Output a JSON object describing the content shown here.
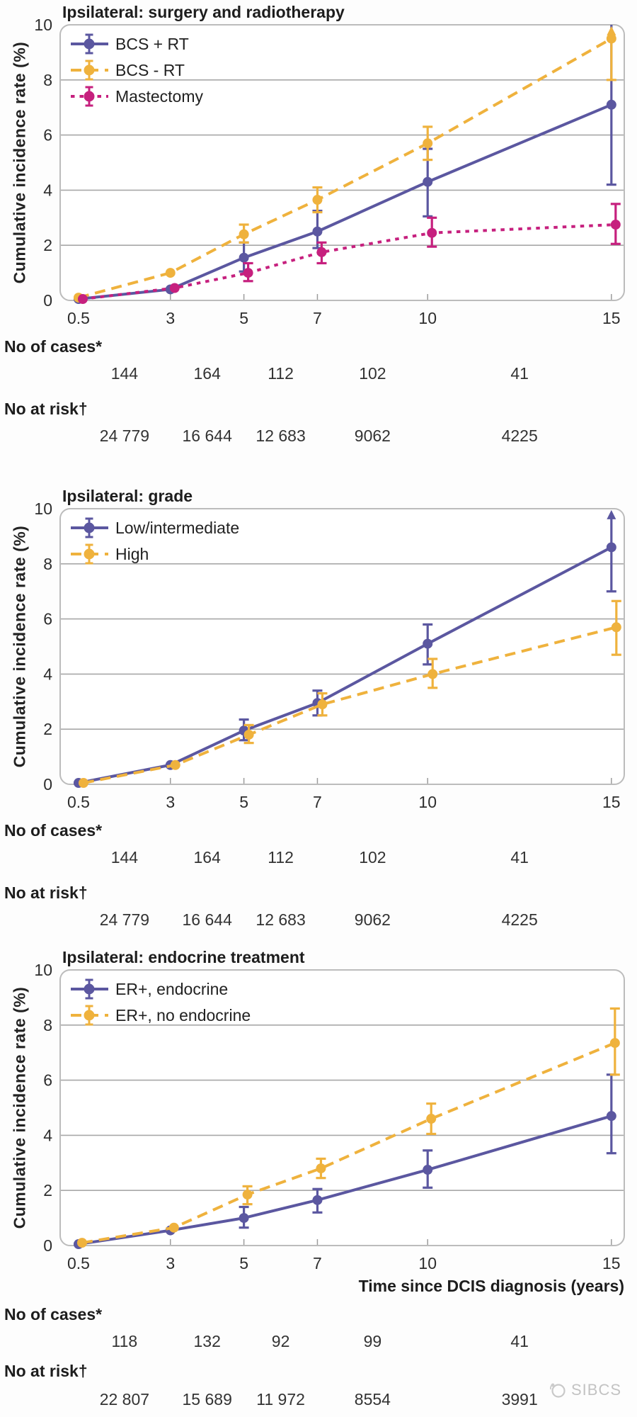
{
  "y_axis_label": "Cumulative incidence rate (%)",
  "x_axis_label": "Time since DCIS diagnosis (years)",
  "row_labels": {
    "cases": "No of cases*",
    "risk": "No at risk†"
  },
  "watermark": "SIBCS",
  "colors": {
    "purple": "#5b57a0",
    "yellow": "#efb23d",
    "magenta": "#c6207e",
    "grid": "#a8a8a8",
    "border": "#bcbcbc",
    "text": "#2e2e2e"
  },
  "chart_data": [
    {
      "type": "line",
      "title": "Ipsilateral: surgery and radiotherapy",
      "x": [
        0.5,
        3,
        5,
        7,
        10,
        15
      ],
      "x_tick_labels": [
        "0.5",
        "3",
        "5",
        "7",
        "10",
        "15"
      ],
      "x_domain": [
        0,
        15.35
      ],
      "ylim": [
        0,
        10
      ],
      "y_ticks": [
        0,
        2,
        4,
        6,
        8,
        10
      ],
      "grid": true,
      "legend_position": "top-left",
      "series": [
        {
          "name": "BCS + RT",
          "color": "#5b57a0",
          "style": "solid",
          "values": [
            0.05,
            0.4,
            1.55,
            2.5,
            4.3,
            7.1
          ],
          "ci_low": [
            null,
            null,
            1.05,
            1.9,
            3.05,
            4.2
          ],
          "ci_high": [
            null,
            null,
            2.1,
            3.25,
            5.5,
            10
          ],
          "ci_top": [
            null,
            null,
            null,
            null,
            null,
            "clip"
          ]
        },
        {
          "name": "BCS - RT",
          "color": "#efb23d",
          "style": "dashed",
          "values": [
            0.1,
            1.0,
            2.4,
            3.65,
            5.7,
            9.5
          ],
          "ci_low": [
            null,
            null,
            2.1,
            3.2,
            5.1,
            8.0
          ],
          "ci_high": [
            null,
            null,
            2.75,
            4.1,
            6.3,
            9.9
          ],
          "ci_top": [
            null,
            null,
            null,
            null,
            null,
            "arrow"
          ]
        },
        {
          "name": "Mastectomy",
          "color": "#c6207e",
          "style": "dotted",
          "values": [
            0.05,
            0.45,
            1.0,
            1.75,
            2.45,
            2.75
          ],
          "ci_low": [
            null,
            null,
            0.7,
            1.35,
            1.95,
            2.05
          ],
          "ci_high": [
            null,
            null,
            1.35,
            2.1,
            3.0,
            3.5
          ],
          "ci_top": [
            null,
            null,
            null,
            null,
            null,
            null
          ]
        }
      ],
      "no_of_cases": [
        "144",
        "164",
        "112",
        "102",
        "41"
      ],
      "no_at_risk": [
        "24 779",
        "16 644",
        "12 683",
        "9062",
        "4225"
      ]
    },
    {
      "type": "line",
      "title": "Ipsilateral: grade",
      "x": [
        0.5,
        3,
        5,
        7,
        10,
        15
      ],
      "x_tick_labels": [
        "0.5",
        "3",
        "5",
        "7",
        "10",
        "15"
      ],
      "x_domain": [
        0,
        15.35
      ],
      "ylim": [
        0,
        10
      ],
      "y_ticks": [
        0,
        2,
        4,
        6,
        8,
        10
      ],
      "grid": true,
      "legend_position": "top-left",
      "series": [
        {
          "name": "Low/intermediate",
          "color": "#5b57a0",
          "style": "solid",
          "values": [
            0.05,
            0.7,
            1.95,
            2.95,
            5.1,
            8.6
          ],
          "ci_low": [
            null,
            null,
            1.6,
            2.5,
            4.35,
            7.0
          ],
          "ci_high": [
            null,
            null,
            2.35,
            3.4,
            5.8,
            9.9
          ],
          "ci_top": [
            null,
            null,
            null,
            null,
            null,
            "arrow"
          ]
        },
        {
          "name": "High",
          "color": "#efb23d",
          "style": "dashed",
          "values": [
            0.05,
            0.7,
            1.8,
            2.9,
            4.0,
            5.7
          ],
          "ci_low": [
            null,
            null,
            1.5,
            2.5,
            3.5,
            4.7
          ],
          "ci_high": [
            null,
            null,
            2.15,
            3.3,
            4.55,
            6.65
          ],
          "ci_top": [
            null,
            null,
            null,
            null,
            null,
            null
          ]
        }
      ],
      "no_of_cases": [
        "144",
        "164",
        "112",
        "102",
        "41"
      ],
      "no_at_risk": [
        "24 779",
        "16 644",
        "12 683",
        "9062",
        "4225"
      ]
    },
    {
      "type": "line",
      "title": "Ipsilateral: endocrine treatment",
      "x": [
        0.5,
        3,
        5,
        7,
        10,
        15
      ],
      "x_tick_labels": [
        "0.5",
        "3",
        "5",
        "7",
        "10",
        "15"
      ],
      "x_domain": [
        0,
        15.35
      ],
      "ylim": [
        0,
        10
      ],
      "y_ticks": [
        0,
        2,
        4,
        6,
        8,
        10
      ],
      "grid": true,
      "legend_position": "top-left",
      "series": [
        {
          "name": "ER+, endocrine",
          "color": "#5b57a0",
          "style": "solid",
          "values": [
            0.05,
            0.55,
            1.0,
            1.65,
            2.75,
            4.7
          ],
          "ci_low": [
            null,
            null,
            0.65,
            1.2,
            2.1,
            3.35
          ],
          "ci_high": [
            null,
            null,
            1.4,
            2.05,
            3.45,
            6.2
          ],
          "ci_top": [
            null,
            null,
            null,
            null,
            null,
            null
          ]
        },
        {
          "name": "ER+, no endocrine",
          "color": "#efb23d",
          "style": "dashed",
          "values": [
            0.1,
            0.65,
            1.85,
            2.8,
            4.6,
            7.35
          ],
          "ci_low": [
            null,
            null,
            1.5,
            2.45,
            4.05,
            6.2
          ],
          "ci_high": [
            null,
            null,
            2.15,
            3.15,
            5.15,
            8.6
          ],
          "ci_top": [
            null,
            null,
            null,
            null,
            null,
            null
          ]
        }
      ],
      "no_of_cases": [
        "118",
        "132",
        "92",
        "99",
        "41"
      ],
      "no_at_risk": [
        "22 807",
        "15 689",
        "11 972",
        "8554",
        "3991"
      ]
    }
  ]
}
